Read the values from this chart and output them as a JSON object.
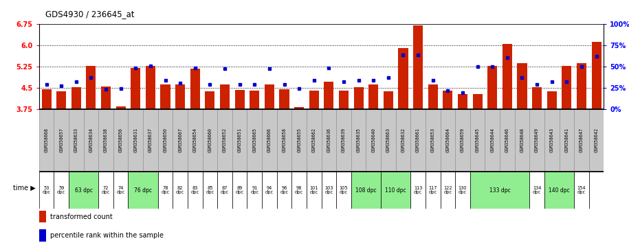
{
  "title": "GDS4930 / 236645_at",
  "gsm_labels": [
    "GSM358668",
    "GSM358657",
    "GSM358633",
    "GSM358634",
    "GSM358638",
    "GSM358656",
    "GSM358631",
    "GSM358637",
    "GSM358650",
    "GSM358667",
    "GSM358654",
    "GSM358660",
    "GSM358652",
    "GSM358651",
    "GSM358665",
    "GSM358666",
    "GSM358658",
    "GSM358655",
    "GSM358662",
    "GSM358636",
    "GSM358639",
    "GSM358635",
    "GSM358640",
    "GSM358663",
    "GSM358632",
    "GSM358661",
    "GSM358653",
    "GSM358664",
    "GSM358659",
    "GSM358645",
    "GSM358644",
    "GSM358646",
    "GSM358648",
    "GSM358649",
    "GSM358643",
    "GSM358641",
    "GSM358647",
    "GSM358642"
  ],
  "bar_values": [
    4.45,
    4.38,
    4.52,
    5.28,
    4.55,
    3.85,
    5.22,
    5.28,
    4.62,
    4.62,
    5.19,
    4.38,
    4.62,
    4.44,
    4.41,
    4.62,
    4.45,
    3.82,
    4.42,
    4.72,
    4.42,
    4.52,
    4.62,
    4.38,
    5.92,
    6.72,
    4.62,
    4.42,
    4.3,
    4.28,
    5.28,
    6.05,
    5.38,
    4.52,
    4.38,
    5.28,
    5.38,
    6.12
  ],
  "percentile_values": [
    4.62,
    4.58,
    4.72,
    4.88,
    4.45,
    4.48,
    5.22,
    5.28,
    4.78,
    4.68,
    5.22,
    4.62,
    5.18,
    4.62,
    4.62,
    5.18,
    4.62,
    4.48,
    4.78,
    5.22,
    4.72,
    4.78,
    4.78,
    4.88,
    5.68,
    5.68,
    4.78,
    4.42,
    4.35,
    5.25,
    5.25,
    5.58,
    4.88,
    4.62,
    4.72,
    4.72,
    5.25,
    5.62
  ],
  "time_cell_groups": [
    {
      "cols": [
        0
      ],
      "label": "53\ndpc",
      "bg": "white"
    },
    {
      "cols": [
        1
      ],
      "label": "59\ndpc",
      "bg": "white"
    },
    {
      "cols": [
        2,
        3
      ],
      "label": "63 dpc",
      "bg": "#90EE90"
    },
    {
      "cols": [
        4
      ],
      "label": "72\ndpc",
      "bg": "white"
    },
    {
      "cols": [
        5
      ],
      "label": "74\ndpc",
      "bg": "white"
    },
    {
      "cols": [
        6,
        7
      ],
      "label": "76 dpc",
      "bg": "#90EE90"
    },
    {
      "cols": [
        8
      ],
      "label": "78\ndpc",
      "bg": "white"
    },
    {
      "cols": [
        9
      ],
      "label": "82\ndpc",
      "bg": "white"
    },
    {
      "cols": [
        10
      ],
      "label": "83\ndpc",
      "bg": "white"
    },
    {
      "cols": [
        11
      ],
      "label": "85\ndpc",
      "bg": "white"
    },
    {
      "cols": [
        12
      ],
      "label": "87\ndpc",
      "bg": "white"
    },
    {
      "cols": [
        13
      ],
      "label": "89\ndpc",
      "bg": "white"
    },
    {
      "cols": [
        14
      ],
      "label": "91\ndpc",
      "bg": "white"
    },
    {
      "cols": [
        15
      ],
      "label": "94\ndpc",
      "bg": "white"
    },
    {
      "cols": [
        16
      ],
      "label": "96\ndpc",
      "bg": "white"
    },
    {
      "cols": [
        17
      ],
      "label": "98\ndpc",
      "bg": "white"
    },
    {
      "cols": [
        18
      ],
      "label": "101\ndpc",
      "bg": "white"
    },
    {
      "cols": [
        19
      ],
      "label": "103\ndpc",
      "bg": "white"
    },
    {
      "cols": [
        20
      ],
      "label": "105\ndpc",
      "bg": "white"
    },
    {
      "cols": [
        21,
        22
      ],
      "label": "108 dpc",
      "bg": "#90EE90"
    },
    {
      "cols": [
        23,
        24
      ],
      "label": "110 dpc",
      "bg": "#90EE90"
    },
    {
      "cols": [
        25
      ],
      "label": "113\ndpc",
      "bg": "white"
    },
    {
      "cols": [
        26
      ],
      "label": "117\ndpc",
      "bg": "white"
    },
    {
      "cols": [
        27
      ],
      "label": "122\ndpc",
      "bg": "white"
    },
    {
      "cols": [
        28
      ],
      "label": "130\ndpc",
      "bg": "white"
    },
    {
      "cols": [
        29,
        30,
        31,
        32
      ],
      "label": "133 dpc",
      "bg": "#90EE90"
    },
    {
      "cols": [
        33
      ],
      "label": "134\ndpc",
      "bg": "white"
    },
    {
      "cols": [
        34,
        35
      ],
      "label": "140 dpc",
      "bg": "#90EE90"
    },
    {
      "cols": [
        36
      ],
      "label": "154\ndpc",
      "bg": "white"
    },
    {
      "cols": [
        37
      ],
      "label": "",
      "bg": "white"
    }
  ],
  "ylim": [
    3.75,
    6.75
  ],
  "yticks_left": [
    3.75,
    4.5,
    5.25,
    6.0,
    6.75
  ],
  "yticks_right": [
    0,
    25,
    50,
    75,
    100
  ],
  "bar_color": "#CC2200",
  "dot_color": "#0000CC",
  "bar_bottom": 3.75,
  "legend_red": "transformed count",
  "legend_blue": "percentile rank within the sample",
  "gsm_bg_color": "#D0D0D0",
  "gsm_border_color": "#888888"
}
